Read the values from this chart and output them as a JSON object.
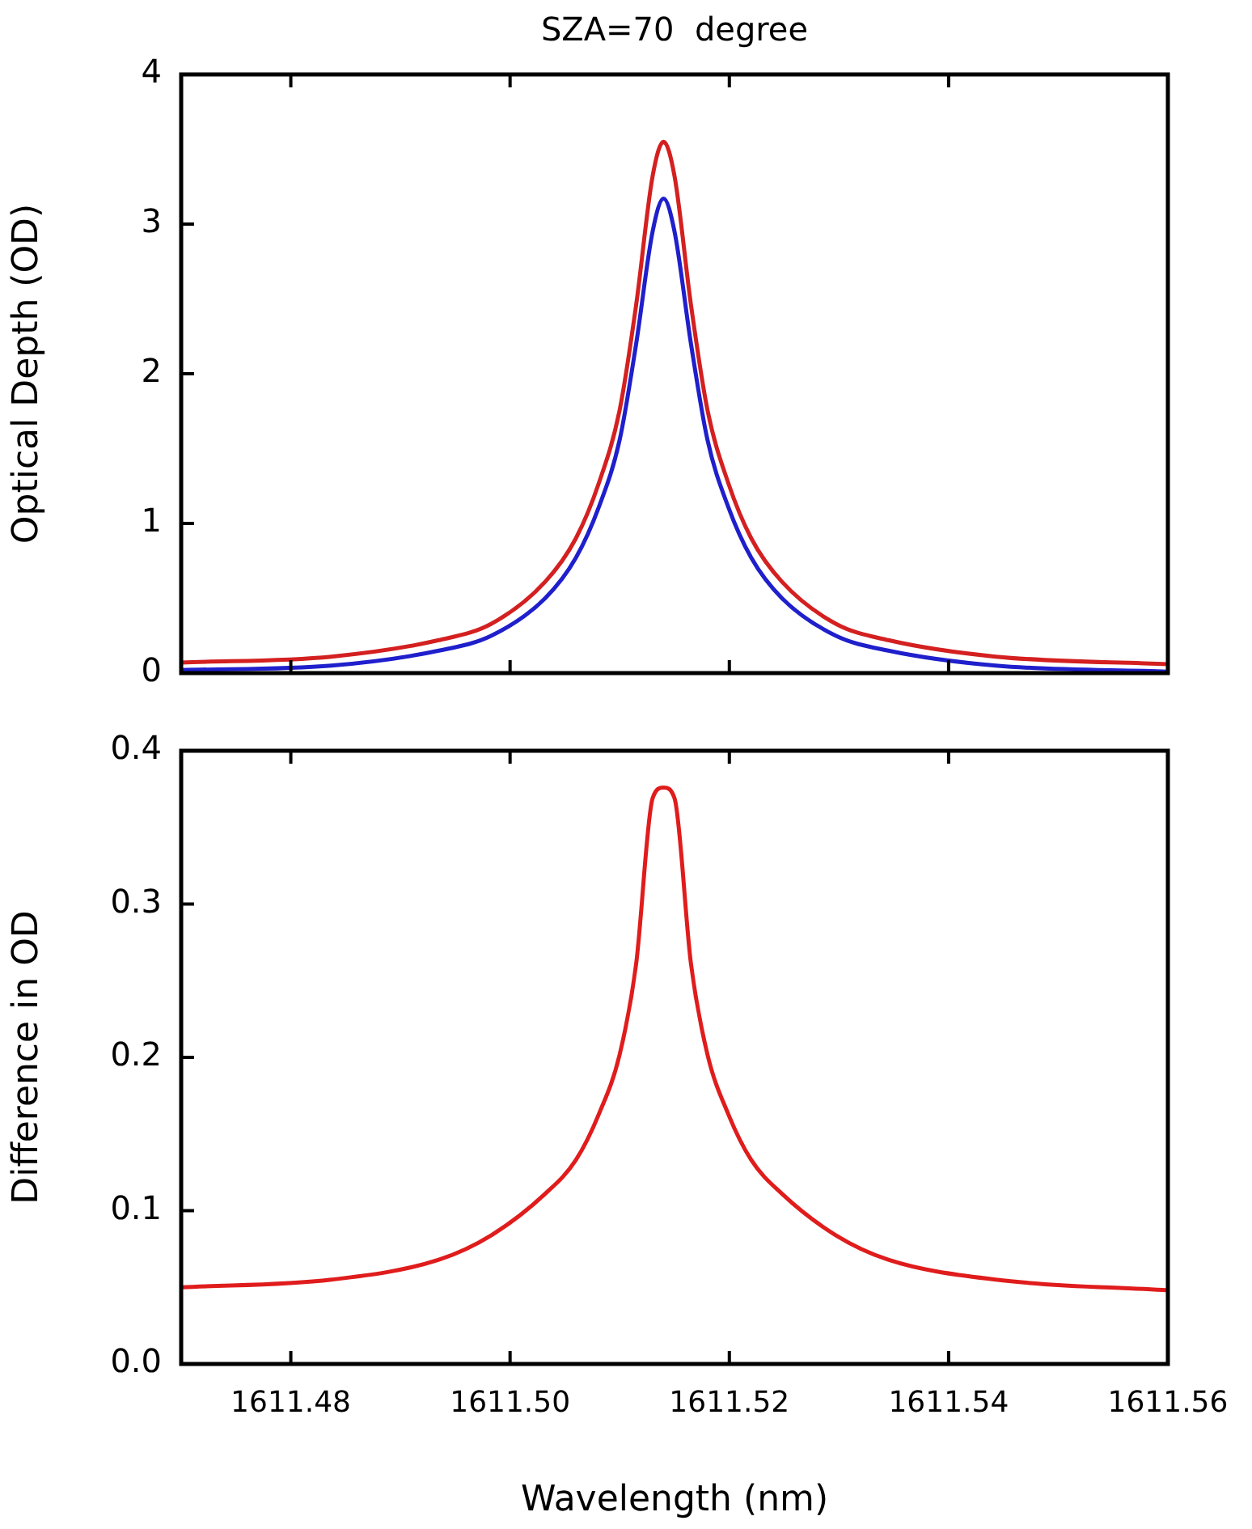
{
  "chart_data": [
    {
      "type": "line",
      "title": "SZA=70  degree",
      "ylabel": "Optical Depth (OD)",
      "xlim": [
        1611.47,
        1611.56
      ],
      "xticks": [
        1611.48,
        1611.5,
        1611.52,
        1611.54,
        1611.56
      ],
      "ylim": [
        0,
        4
      ],
      "yticks": [
        0,
        1,
        2,
        3,
        4
      ],
      "tick_labels": "y",
      "grid": false,
      "legend": false,
      "marker": "none",
      "line_style": "solid",
      "x": [
        1611.47,
        1611.4837,
        1611.4935,
        1611.4983,
        1611.5032,
        1611.506,
        1611.5081,
        1611.51,
        1611.5115,
        1611.513,
        1611.514,
        1611.515,
        1611.5165,
        1611.518,
        1611.5199,
        1611.522,
        1611.5248,
        1611.5297,
        1611.5345,
        1611.5443,
        1611.56
      ],
      "series": [
        {
          "color": "#1f1fcc",
          "values": [
            0.02,
            0.05,
            0.15,
            0.25,
            0.5,
            0.77,
            1.11,
            1.56,
            2.2,
            2.95,
            3.17,
            2.95,
            2.2,
            1.56,
            1.11,
            0.77,
            0.5,
            0.25,
            0.15,
            0.05,
            0.01
          ]
        },
        {
          "color": "#d42020",
          "values": [
            0.07,
            0.11,
            0.22,
            0.33,
            0.61,
            0.9,
            1.27,
            1.76,
            2.46,
            3.32,
            3.55,
            3.32,
            2.46,
            1.76,
            1.27,
            0.9,
            0.61,
            0.33,
            0.22,
            0.11,
            0.06
          ]
        }
      ]
    },
    {
      "type": "line",
      "xlabel": "Wavelength (nm)",
      "ylabel": "Difference in OD",
      "xlim": [
        1611.47,
        1611.56
      ],
      "xticks": [
        {
          "value": 1611.48,
          "label": "1611.48"
        },
        {
          "value": 1611.5,
          "label": "1611.50"
        },
        {
          "value": 1611.52,
          "label": "1611.52"
        },
        {
          "value": 1611.54,
          "label": "1611.54"
        },
        {
          "value": 1611.56,
          "label": "1611.56"
        }
      ],
      "ylim": [
        0,
        0.4
      ],
      "yticks": [
        {
          "value": 0,
          "label": "0.0"
        },
        0.1,
        0.2,
        0.3,
        0.4
      ],
      "grid": false,
      "legend": false,
      "marker": "none",
      "line_style": "solid",
      "x": [
        1611.47,
        1611.4837,
        1611.4935,
        1611.4983,
        1611.5032,
        1611.506,
        1611.5081,
        1611.51,
        1611.5115,
        1611.513,
        1611.514,
        1611.515,
        1611.5165,
        1611.518,
        1611.5199,
        1611.522,
        1611.5248,
        1611.5297,
        1611.5345,
        1611.5443,
        1611.56
      ],
      "series": [
        {
          "color": "#e01c1c",
          "values": [
            0.05,
            0.055,
            0.068,
            0.084,
            0.111,
            0.133,
            0.163,
            0.202,
            0.261,
            0.369,
            0.376,
            0.369,
            0.261,
            0.202,
            0.163,
            0.133,
            0.111,
            0.084,
            0.068,
            0.055,
            0.048
          ]
        }
      ]
    }
  ]
}
